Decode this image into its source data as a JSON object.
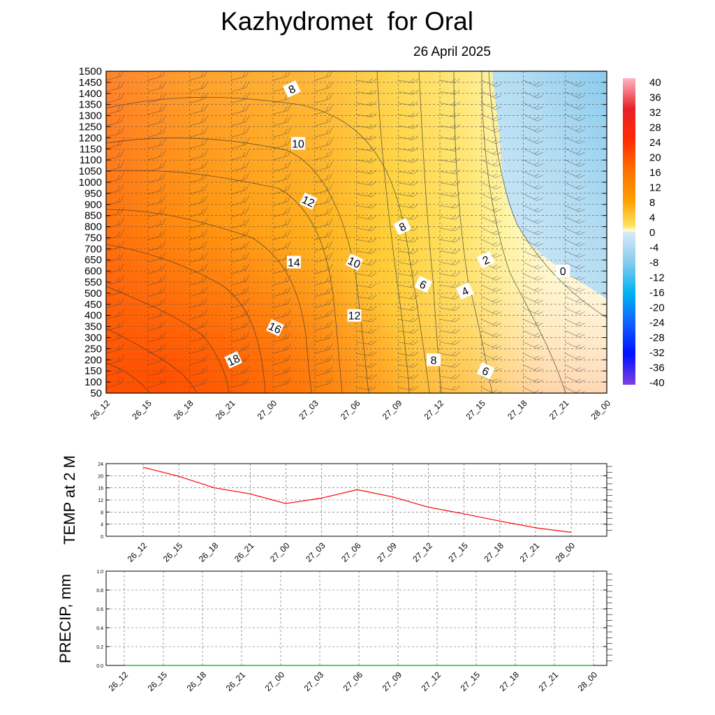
{
  "title": "Kazhydromet  for Oral",
  "date": "26 April 2025",
  "time_labels": [
    "26_12",
    "26_15",
    "26_18",
    "26_21",
    "27_00",
    "27_03",
    "27_06",
    "27_09",
    "27_12",
    "27_15",
    "27_18",
    "27_21",
    "28_00"
  ],
  "chart_data": [
    {
      "type": "heatmap",
      "name": "temperature-height-section",
      "ylim": [
        50,
        1500
      ],
      "yticks": [
        50,
        100,
        150,
        200,
        250,
        300,
        350,
        400,
        450,
        500,
        550,
        600,
        650,
        700,
        750,
        800,
        850,
        900,
        950,
        1000,
        1050,
        1100,
        1150,
        1200,
        1250,
        1300,
        1350,
        1400,
        1450,
        1500
      ],
      "colorbar_labels": [
        "40",
        "36",
        "32",
        "28",
        "24",
        "20",
        "16",
        "12",
        "8",
        "4",
        "0",
        "-4",
        "-8",
        "-12",
        "-16",
        "-20",
        "-24",
        "-28",
        "-32",
        "-36",
        "-40"
      ],
      "contour_labels": [
        {
          "text": "8",
          "t": 4.45,
          "h": 1420
        },
        {
          "text": "10",
          "t": 4.6,
          "h": 1175
        },
        {
          "text": "12",
          "t": 4.85,
          "h": 915
        },
        {
          "text": "8",
          "t": 7.1,
          "h": 800
        },
        {
          "text": "14",
          "t": 4.5,
          "h": 640
        },
        {
          "text": "10",
          "t": 5.95,
          "h": 640
        },
        {
          "text": "2",
          "t": 9.1,
          "h": 650
        },
        {
          "text": "0",
          "t": 10.95,
          "h": 600
        },
        {
          "text": "6",
          "t": 7.6,
          "h": 540
        },
        {
          "text": "4",
          "t": 8.6,
          "h": 510
        },
        {
          "text": "12",
          "t": 5.95,
          "h": 400
        },
        {
          "text": "16",
          "t": 4.05,
          "h": 345
        },
        {
          "text": "18",
          "t": 3.05,
          "h": 200
        },
        {
          "text": "8",
          "t": 7.85,
          "h": 200
        },
        {
          "text": "6",
          "t": 9.1,
          "h": 150
        }
      ]
    },
    {
      "type": "line",
      "name": "temp-2m",
      "ylabel": "TEMP at 2 M",
      "ylim": [
        0,
        24
      ],
      "yticks": [
        "0",
        "4",
        "8",
        "12",
        "16",
        "20",
        "24"
      ],
      "values": [
        22.8,
        19.8,
        16.0,
        14.0,
        10.8,
        12.6,
        15.4,
        13.0,
        9.6,
        7.4,
        5.0,
        2.8,
        1.3
      ]
    },
    {
      "type": "line",
      "name": "precip",
      "ylabel": "PRECIP, mm",
      "ylim": [
        0,
        1
      ],
      "yticks": [
        "0.0",
        "0.2",
        "0.4",
        "0.6",
        "0.8",
        "1.0"
      ],
      "values": [
        0,
        0,
        0,
        0,
        0,
        0,
        0,
        0,
        0,
        0,
        0,
        0,
        0
      ]
    }
  ],
  "colors": {
    "temp_line": "#ff0000",
    "precip_line": "#00aa00"
  }
}
